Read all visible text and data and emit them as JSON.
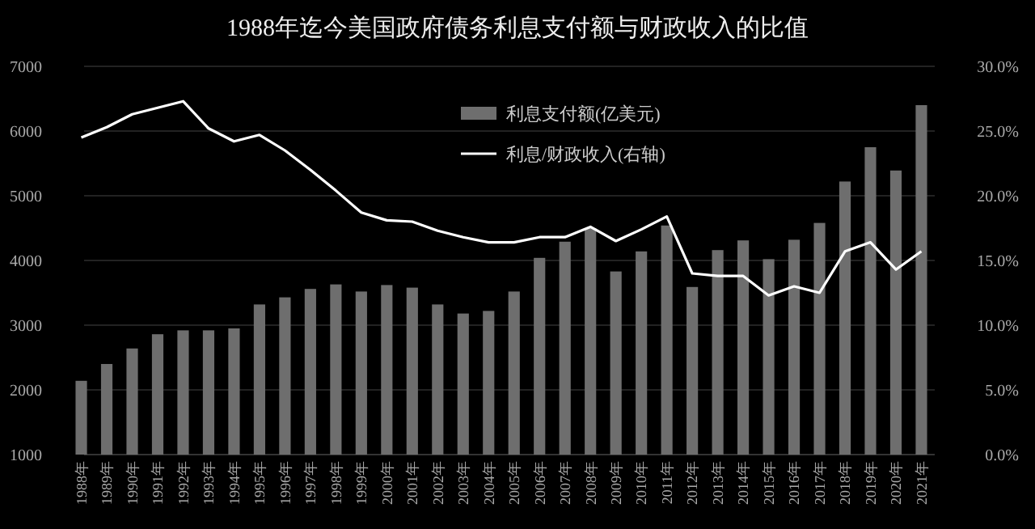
{
  "chart_data": {
    "type": "bar",
    "title": "1988年迄今美国政府债务利息支付额与财政收入的比值",
    "categories": [
      "1988年",
      "1989年",
      "1990年",
      "1991年",
      "1992年",
      "1993年",
      "1994年",
      "1995年",
      "1996年",
      "1997年",
      "1998年",
      "1999年",
      "2000年",
      "2001年",
      "2002年",
      "2003年",
      "2004年",
      "2005年",
      "2006年",
      "2007年",
      "2008年",
      "2009年",
      "2010年",
      "2011年",
      "2012年",
      "2013年",
      "2014年",
      "2015年",
      "2016年",
      "2017年",
      "2018年",
      "2019年",
      "2020年",
      "2021年"
    ],
    "series": [
      {
        "name": "利息支付额(亿美元)",
        "color": "#6e6e6e",
        "values": [
          2140,
          2400,
          2640,
          2860,
          2920,
          2920,
          2950,
          3320,
          3430,
          3560,
          3630,
          3520,
          3620,
          3580,
          3320,
          3180,
          3220,
          3520,
          4040,
          4290,
          4500,
          3830,
          4140,
          4540,
          3590,
          4160,
          4310,
          4020,
          4320,
          4580,
          5220,
          5750,
          5390,
          6400
        ]
      },
      {
        "name": "利息/财政收入(右轴)",
        "type": "line",
        "axis": "y2",
        "color": "#ffffff",
        "values": [
          24.5,
          25.3,
          26.3,
          26.8,
          27.3,
          25.2,
          24.2,
          24.7,
          23.5,
          22.0,
          20.4,
          18.7,
          18.1,
          18.0,
          17.3,
          16.8,
          16.4,
          16.4,
          16.8,
          16.8,
          17.6,
          16.5,
          17.4,
          18.4,
          14.0,
          13.8,
          13.8,
          12.3,
          13.0,
          12.5,
          15.7,
          16.4,
          14.3,
          15.7
        ]
      }
    ],
    "ylim": [
      1000,
      7000
    ],
    "yticks": [
      1000,
      2000,
      3000,
      4000,
      5000,
      6000,
      7000
    ],
    "y2lim": [
      0,
      30
    ],
    "y2ticks": [
      {
        "value": 0,
        "label": "0.0%"
      },
      {
        "value": 5,
        "label": "5.0%"
      },
      {
        "value": 10,
        "label": "10.0%"
      },
      {
        "value": 15,
        "label": "15.0%"
      },
      {
        "value": 20,
        "label": "20.0%"
      },
      {
        "value": 25,
        "label": "25.0%"
      },
      {
        "value": 30,
        "label": "30.0%"
      }
    ],
    "grid": "y",
    "legend": "top",
    "marker": "none",
    "line_style": "solid"
  }
}
